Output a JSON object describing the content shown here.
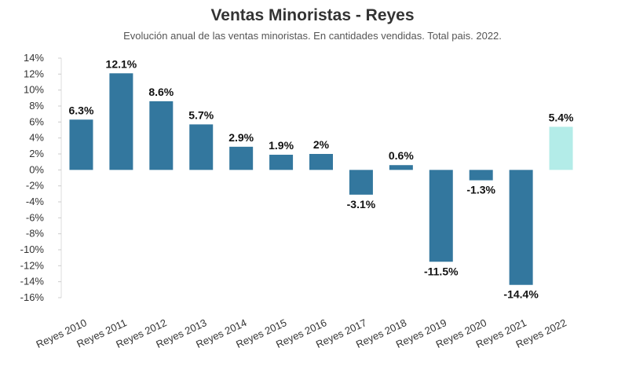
{
  "header": {
    "title": "Ventas Minoristas - Reyes",
    "subtitle": "Evolución anual de las ventas minoristas. En cantidades vendidas. Total pais. 2022."
  },
  "colors": {
    "bar": "#33779E",
    "bar_highlight": "#B3ECE8",
    "axis": "#333333"
  },
  "chart_data": {
    "type": "bar",
    "title": "Ventas Minoristas - Reyes",
    "subtitle": "Evolución anual de las ventas minoristas. En cantidades vendidas. Total pais. 2022.",
    "categories": [
      "Reyes 2010",
      "Reyes 2011",
      "Reyes 2012",
      "Reyes 2013",
      "Reyes 2014",
      "Reyes 2015",
      "Reyes 2016",
      "Reyes 2017",
      "Reyes 2018",
      "Reyes 2019",
      "Reyes 2020",
      "Reyes 2021",
      "Reyes 2022"
    ],
    "values": [
      6.3,
      12.1,
      8.6,
      5.7,
      2.9,
      1.9,
      2.0,
      -3.1,
      0.6,
      -11.5,
      -1.3,
      -14.4,
      5.4
    ],
    "value_labels": [
      "6.3%",
      "12.1%",
      "8.6%",
      "5.7%",
      "2.9%",
      "1.9%",
      "2%",
      "-3.1%",
      "0.6%",
      "-11.5%",
      "-1.3%",
      "-14.4%",
      "5.4%"
    ],
    "highlight_index": 12,
    "ylim": [
      -16,
      14
    ],
    "yticks": [
      14,
      12,
      10,
      8,
      6,
      4,
      2,
      0,
      -2,
      -4,
      -6,
      -8,
      -10,
      -12,
      -14,
      -16
    ],
    "ytick_labels": [
      "14%",
      "12%",
      "10%",
      "8%",
      "6%",
      "4%",
      "2%",
      "0%",
      "-2%",
      "-4%",
      "-6%",
      "-8%",
      "-10%",
      "-12%",
      "-14%",
      "-16%"
    ],
    "xlabel": "",
    "ylabel": "",
    "grid": false,
    "legend": "none"
  }
}
